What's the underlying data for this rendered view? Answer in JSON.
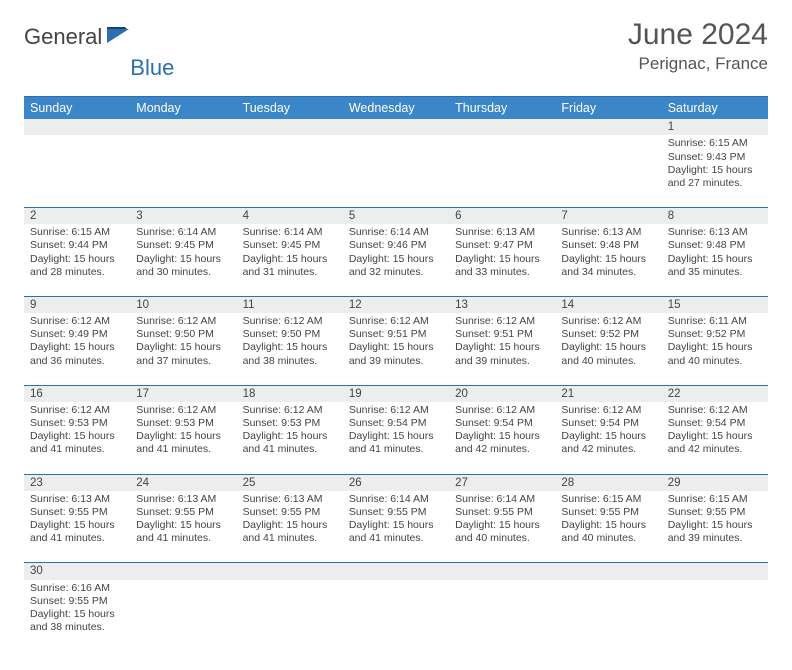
{
  "brand": {
    "name1": "General",
    "name2": "Blue"
  },
  "title": "June 2024",
  "location": "Perignac, France",
  "colors": {
    "header_bg": "#3b86c8",
    "border": "#2b6fb0",
    "daynum_bg": "#eceded",
    "text": "#444"
  },
  "weekdays": [
    "Sunday",
    "Monday",
    "Tuesday",
    "Wednesday",
    "Thursday",
    "Friday",
    "Saturday"
  ],
  "weeks": [
    [
      null,
      null,
      null,
      null,
      null,
      null,
      {
        "n": 1,
        "sr": "6:15 AM",
        "ss": "9:43 PM",
        "dl": "15 hours and 27 minutes."
      }
    ],
    [
      {
        "n": 2,
        "sr": "6:15 AM",
        "ss": "9:44 PM",
        "dl": "15 hours and 28 minutes."
      },
      {
        "n": 3,
        "sr": "6:14 AM",
        "ss": "9:45 PM",
        "dl": "15 hours and 30 minutes."
      },
      {
        "n": 4,
        "sr": "6:14 AM",
        "ss": "9:45 PM",
        "dl": "15 hours and 31 minutes."
      },
      {
        "n": 5,
        "sr": "6:14 AM",
        "ss": "9:46 PM",
        "dl": "15 hours and 32 minutes."
      },
      {
        "n": 6,
        "sr": "6:13 AM",
        "ss": "9:47 PM",
        "dl": "15 hours and 33 minutes."
      },
      {
        "n": 7,
        "sr": "6:13 AM",
        "ss": "9:48 PM",
        "dl": "15 hours and 34 minutes."
      },
      {
        "n": 8,
        "sr": "6:13 AM",
        "ss": "9:48 PM",
        "dl": "15 hours and 35 minutes."
      }
    ],
    [
      {
        "n": 9,
        "sr": "6:12 AM",
        "ss": "9:49 PM",
        "dl": "15 hours and 36 minutes."
      },
      {
        "n": 10,
        "sr": "6:12 AM",
        "ss": "9:50 PM",
        "dl": "15 hours and 37 minutes."
      },
      {
        "n": 11,
        "sr": "6:12 AM",
        "ss": "9:50 PM",
        "dl": "15 hours and 38 minutes."
      },
      {
        "n": 12,
        "sr": "6:12 AM",
        "ss": "9:51 PM",
        "dl": "15 hours and 39 minutes."
      },
      {
        "n": 13,
        "sr": "6:12 AM",
        "ss": "9:51 PM",
        "dl": "15 hours and 39 minutes."
      },
      {
        "n": 14,
        "sr": "6:12 AM",
        "ss": "9:52 PM",
        "dl": "15 hours and 40 minutes."
      },
      {
        "n": 15,
        "sr": "6:11 AM",
        "ss": "9:52 PM",
        "dl": "15 hours and 40 minutes."
      }
    ],
    [
      {
        "n": 16,
        "sr": "6:12 AM",
        "ss": "9:53 PM",
        "dl": "15 hours and 41 minutes."
      },
      {
        "n": 17,
        "sr": "6:12 AM",
        "ss": "9:53 PM",
        "dl": "15 hours and 41 minutes."
      },
      {
        "n": 18,
        "sr": "6:12 AM",
        "ss": "9:53 PM",
        "dl": "15 hours and 41 minutes."
      },
      {
        "n": 19,
        "sr": "6:12 AM",
        "ss": "9:54 PM",
        "dl": "15 hours and 41 minutes."
      },
      {
        "n": 20,
        "sr": "6:12 AM",
        "ss": "9:54 PM",
        "dl": "15 hours and 42 minutes."
      },
      {
        "n": 21,
        "sr": "6:12 AM",
        "ss": "9:54 PM",
        "dl": "15 hours and 42 minutes."
      },
      {
        "n": 22,
        "sr": "6:12 AM",
        "ss": "9:54 PM",
        "dl": "15 hours and 42 minutes."
      }
    ],
    [
      {
        "n": 23,
        "sr": "6:13 AM",
        "ss": "9:55 PM",
        "dl": "15 hours and 41 minutes."
      },
      {
        "n": 24,
        "sr": "6:13 AM",
        "ss": "9:55 PM",
        "dl": "15 hours and 41 minutes."
      },
      {
        "n": 25,
        "sr": "6:13 AM",
        "ss": "9:55 PM",
        "dl": "15 hours and 41 minutes."
      },
      {
        "n": 26,
        "sr": "6:14 AM",
        "ss": "9:55 PM",
        "dl": "15 hours and 41 minutes."
      },
      {
        "n": 27,
        "sr": "6:14 AM",
        "ss": "9:55 PM",
        "dl": "15 hours and 40 minutes."
      },
      {
        "n": 28,
        "sr": "6:15 AM",
        "ss": "9:55 PM",
        "dl": "15 hours and 40 minutes."
      },
      {
        "n": 29,
        "sr": "6:15 AM",
        "ss": "9:55 PM",
        "dl": "15 hours and 39 minutes."
      }
    ],
    [
      {
        "n": 30,
        "sr": "6:16 AM",
        "ss": "9:55 PM",
        "dl": "15 hours and 38 minutes."
      },
      null,
      null,
      null,
      null,
      null,
      null
    ]
  ]
}
